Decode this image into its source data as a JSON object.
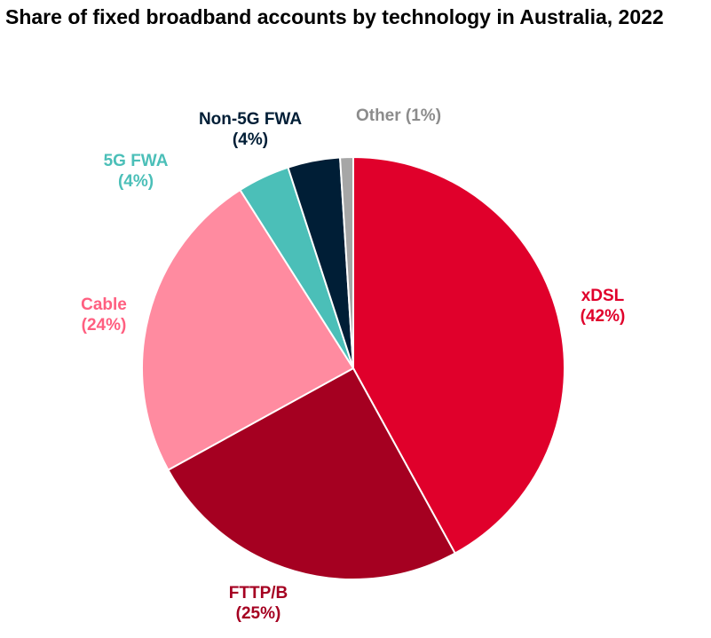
{
  "chart_data": {
    "type": "pie",
    "title": "Share of fixed broadband accounts by technology in Australia, 2022",
    "start": "top",
    "direction": "clockwise",
    "slices": [
      {
        "label": "xDSL",
        "value": 42,
        "pct_label": "(42%)",
        "color": "#E0002B",
        "text_color": "#E0002B"
      },
      {
        "label": "FTTP/B",
        "value": 25,
        "pct_label": "(25%)",
        "color": "#A50021",
        "text_color": "#A50021"
      },
      {
        "label": "Cable",
        "value": 24,
        "pct_label": "(24%)",
        "color": "#FF8BA0",
        "text_color": "#FF5F80"
      },
      {
        "label": "5G FWA",
        "value": 4,
        "pct_label": "(4%)",
        "color": "#4BBFB8",
        "text_color": "#4BBFB8"
      },
      {
        "label": "Non-5G FWA",
        "value": 4,
        "pct_label": "(4%)",
        "color": "#001E36",
        "text_color": "#001E36"
      },
      {
        "label": "Other",
        "value": 1,
        "pct_label": "(1%)",
        "color": "#A6A6A6",
        "text_color": "#8C8C8C"
      }
    ]
  }
}
